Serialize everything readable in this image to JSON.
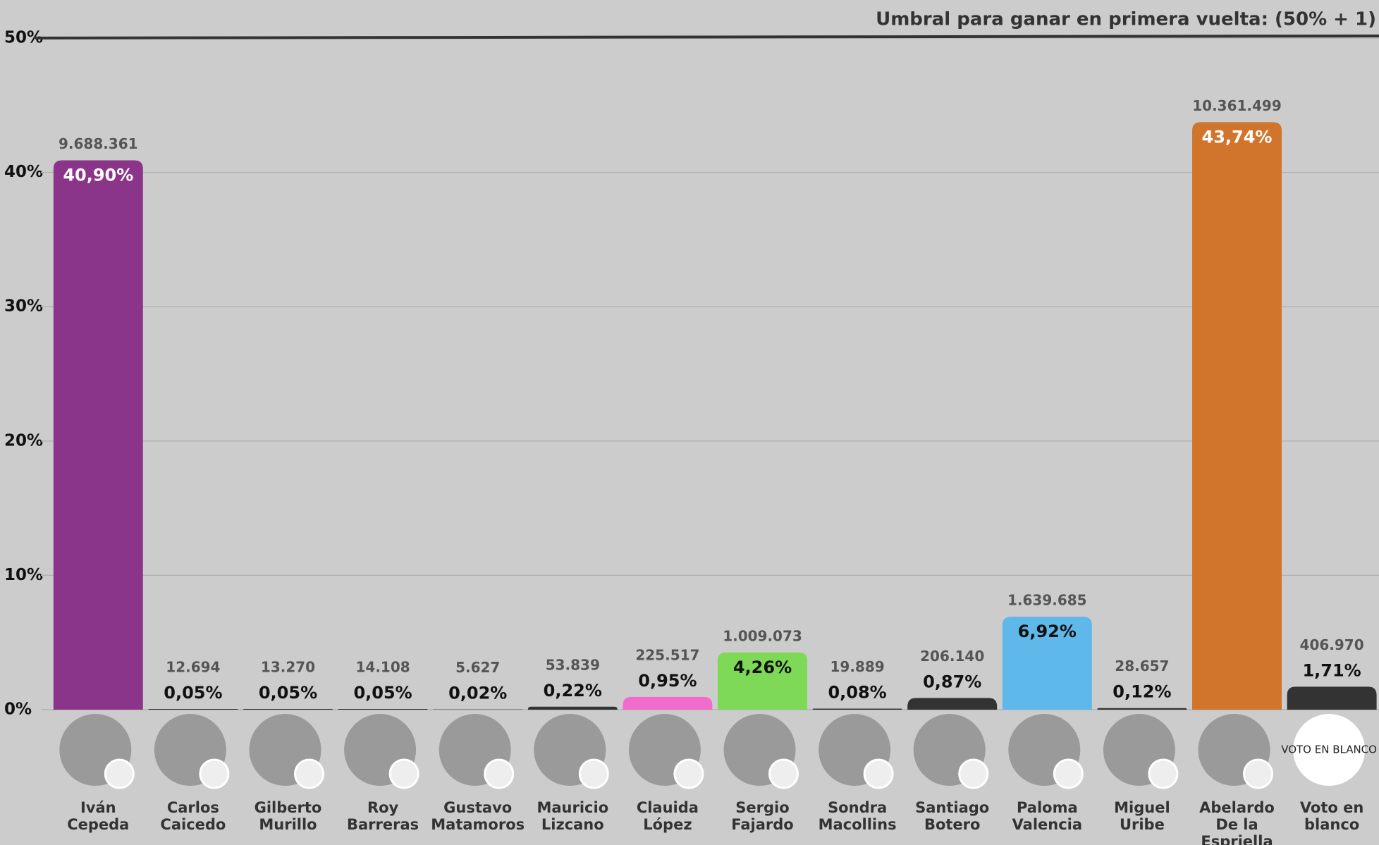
{
  "chart_data": {
    "type": "bar",
    "categories": [
      "Iván Cepeda",
      "Carlos Caicedo",
      "Gilberto Murillo",
      "Roy Barreras",
      "Gustavo Matamoros",
      "Mauricio Lizcano",
      "Clauida López",
      "Sergio Fajardo",
      "Sondra Macollins",
      "Santiago Botero",
      "Paloma Valencia",
      "Miguel Uribe",
      "Abelardo De la Espriella",
      "Voto en blanco"
    ],
    "values": [
      40.9,
      0.05,
      0.05,
      0.05,
      0.02,
      0.22,
      0.95,
      4.26,
      0.08,
      0.87,
      6.92,
      0.12,
      43.74,
      1.71
    ],
    "value_labels": [
      "40,90%",
      "0,05%",
      "0,05%",
      "0,05%",
      "0,02%",
      "0,22%",
      "0,95%",
      "4,26%",
      "0,08%",
      "0,87%",
      "6,92%",
      "0,12%",
      "43,74%",
      "1,71%"
    ],
    "vote_counts": [
      {
        "value": 9688361,
        "label": "9.688.361"
      },
      {
        "value": 12694,
        "label": "12.694"
      },
      {
        "value": 13270,
        "label": "13.270"
      },
      {
        "value": 14108,
        "label": "14.108"
      },
      {
        "value": 5627,
        "label": "5.627"
      },
      {
        "value": 53839,
        "label": "53.839"
      },
      {
        "value": 225517,
        "label": "225.517"
      },
      {
        "value": 1009073,
        "label": "1.009.073"
      },
      {
        "value": 19889,
        "label": "19.889"
      },
      {
        "value": 206140,
        "label": "206.140"
      },
      {
        "value": 1639685,
        "label": "1.639.685"
      },
      {
        "value": 28657,
        "label": "28.657"
      },
      {
        "value": 10361499,
        "label": "10.361.499"
      },
      {
        "value": 406970,
        "label": "406.970"
      }
    ],
    "colors": [
      "#8b358a",
      "#333333",
      "#333333",
      "#333333",
      "#333333",
      "#333333",
      "#f26ccb",
      "#7ed957",
      "#333333",
      "#333333",
      "#5eb8ea",
      "#333333",
      "#d1742c",
      "#333333"
    ],
    "ylim": [
      0,
      50
    ],
    "yticks": [
      {
        "value": 0,
        "label": "0%"
      },
      {
        "value": 10,
        "label": "10%"
      },
      {
        "value": 20,
        "label": "20%"
      },
      {
        "value": 30,
        "label": "30%"
      },
      {
        "value": 40,
        "label": "40%"
      },
      {
        "value": 50,
        "label": "50%"
      }
    ],
    "grid": true,
    "threshold": {
      "value": 50,
      "label": "Umbral para ganar en primera vuelta: (50% + 1)"
    },
    "blank_badge": "VOTO EN BLANCO"
  }
}
